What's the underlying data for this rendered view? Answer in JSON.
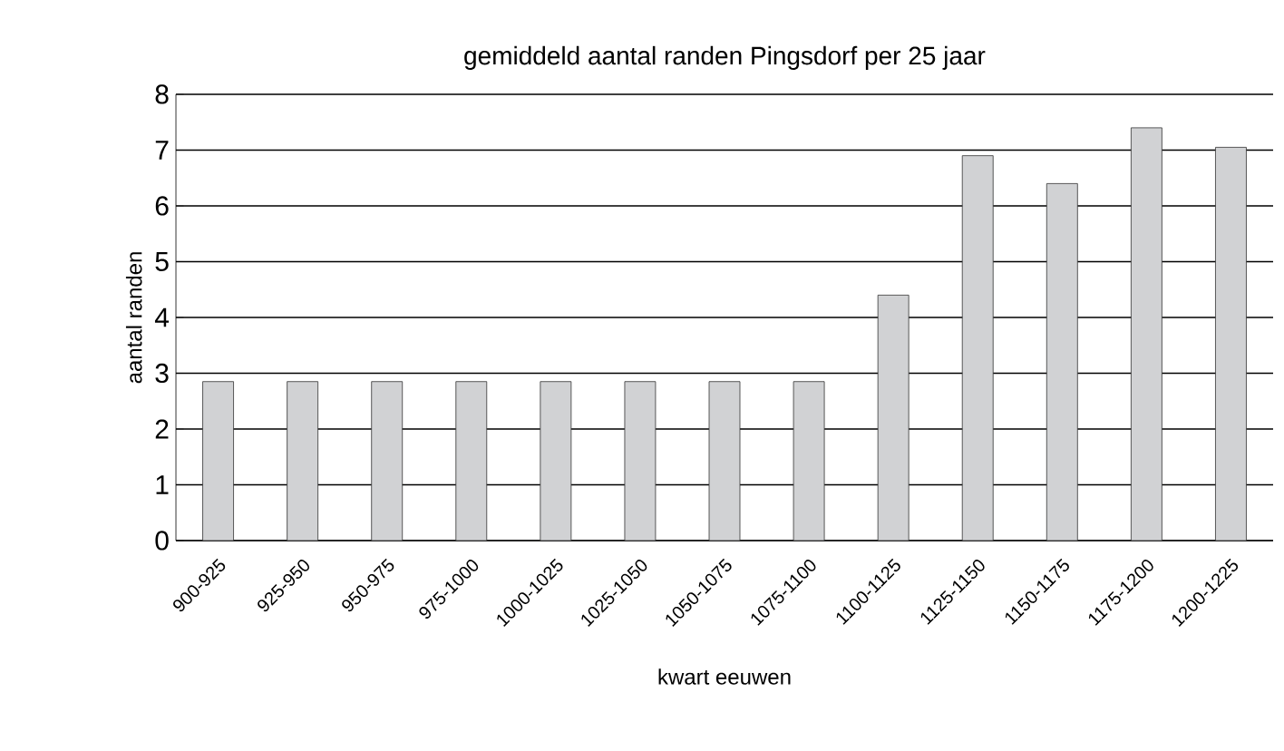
{
  "chart_data": {
    "type": "bar",
    "title": "gemiddeld aantal randen Pingsdorf per 25 jaar",
    "xlabel": "kwart eeuwen",
    "ylabel": "aantal randen",
    "categories": [
      "900-925",
      "925-950",
      "950-975",
      "975-1000",
      "1000-1025",
      "1025-1050",
      "1050-1075",
      "1075-1100",
      "1100-1125",
      "1125-1150",
      "1150-1175",
      "1175-1200",
      "1200-1225"
    ],
    "values": [
      2.85,
      2.85,
      2.85,
      2.85,
      2.85,
      2.85,
      2.85,
      2.85,
      4.4,
      6.9,
      6.4,
      7.4,
      7.05
    ],
    "color": "#d1d2d4",
    "ylim": [
      0,
      8
    ],
    "yticks": [
      0,
      1,
      2,
      3,
      4,
      5,
      6,
      7,
      8
    ],
    "grid": "y"
  }
}
